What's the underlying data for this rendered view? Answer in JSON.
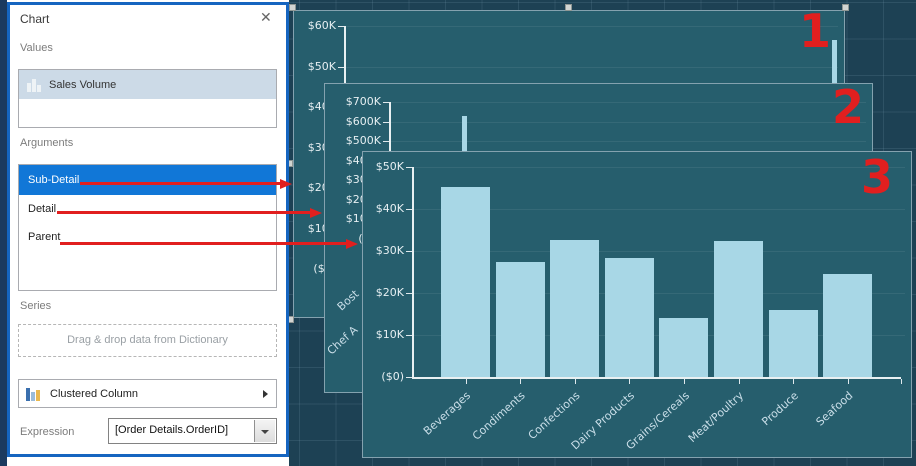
{
  "panel": {
    "title": "Chart",
    "close_label": "✕",
    "values_label": "Values",
    "values_items": [
      {
        "icon": "bar-chart-icon",
        "label": "Sales Volume"
      }
    ],
    "arguments_label": "Arguments",
    "arguments_items": [
      {
        "label": "Sub-Detail",
        "selected": true
      },
      {
        "label": "Detail",
        "selected": false
      },
      {
        "label": "Parent",
        "selected": false
      }
    ],
    "series_label": "Series",
    "series_placeholder": "Drag & drop data from Dictionary",
    "chart_type_label": "Clustered Column",
    "expression_label": "Expression",
    "expression_value": "[Order Details.OrderID]"
  },
  "annotations": {
    "numbers": [
      "1",
      "2",
      "3"
    ],
    "accent_color": "#e11f1f"
  },
  "colors": {
    "surface": "#1d4154",
    "chart_background": "#265e6d",
    "bar_fill": "#a8d7e6",
    "selection_blue": "#1177d7",
    "dialog_border": "#1565c0"
  },
  "chart_data": [
    {
      "type": "bar",
      "annotation": "1",
      "y_tick_labels": [
        "$60K",
        "$50K",
        "$40K",
        "$30K",
        "$20K",
        "$10K",
        "($0)"
      ],
      "ylim": [
        0,
        60000
      ],
      "values": [
        56500
      ],
      "note": "single narrow bar visible near right edge"
    },
    {
      "type": "bar",
      "annotation": "2",
      "y_tick_labels": [
        "$700K",
        "$600K",
        "$500K",
        "$400K",
        "$300K",
        "$200K",
        "$100K",
        "($0)"
      ],
      "ylim": [
        0,
        700000
      ],
      "values": [
        630000
      ],
      "x_labels_partial": [
        "Bost",
        "Chef A"
      ]
    },
    {
      "type": "bar",
      "annotation": "3",
      "y_tick_labels": [
        "$50K",
        "$40K",
        "$30K",
        "$20K",
        "$10K",
        "($0)"
      ],
      "ylim": [
        0,
        50000
      ],
      "categories": [
        "Beverages",
        "Condiments",
        "Confections",
        "Dairy Products",
        "Grains/Cereals",
        "Meat/Poultry",
        "Produce",
        "Seafood"
      ],
      "values": [
        45300,
        27400,
        32600,
        28300,
        14000,
        32400,
        16000,
        24500
      ]
    }
  ]
}
